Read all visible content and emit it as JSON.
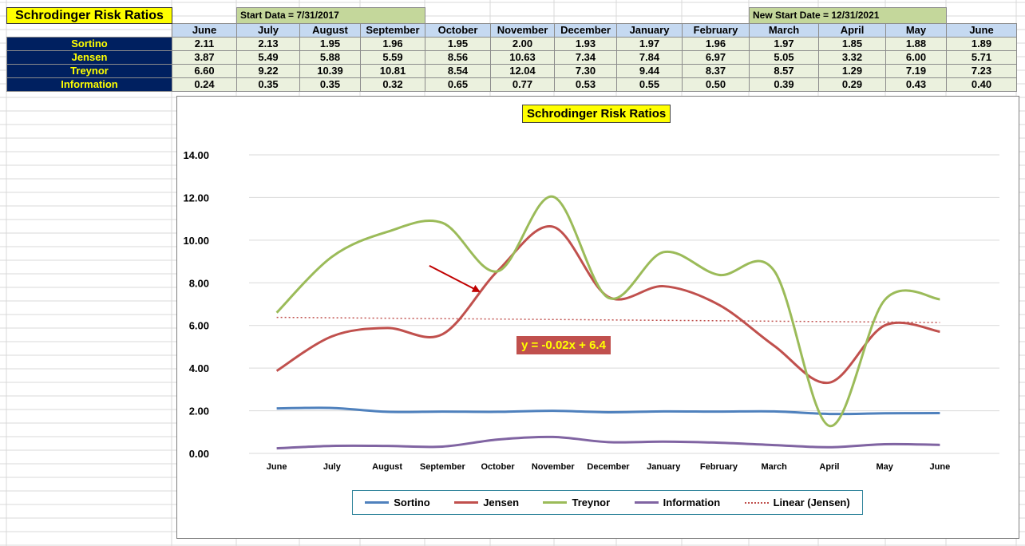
{
  "header": {
    "title": "Schrodinger Risk Ratios",
    "start_note": "Start Data = 7/31/2017",
    "new_start_note": "New Start Date = 12/31/2021"
  },
  "table": {
    "months": [
      "June",
      "July",
      "August",
      "September",
      "October",
      "November",
      "December",
      "January",
      "February",
      "March",
      "April",
      "May",
      "June"
    ],
    "rows": [
      {
        "label": "Sortino",
        "values": [
          "2.11",
          "2.13",
          "1.95",
          "1.96",
          "1.95",
          "2.00",
          "1.93",
          "1.97",
          "1.96",
          "1.97",
          "1.85",
          "1.88",
          "1.89"
        ]
      },
      {
        "label": "Jensen",
        "values": [
          "3.87",
          "5.49",
          "5.88",
          "5.59",
          "8.56",
          "10.63",
          "7.34",
          "7.84",
          "6.97",
          "5.05",
          "3.32",
          "6.00",
          "5.71"
        ]
      },
      {
        "label": "Treynor",
        "values": [
          "6.60",
          "9.22",
          "10.39",
          "10.81",
          "8.54",
          "12.04",
          "7.30",
          "9.44",
          "8.37",
          "8.57",
          "1.29",
          "7.19",
          "7.23"
        ]
      },
      {
        "label": "Information",
        "values": [
          "0.24",
          "0.35",
          "0.35",
          "0.32",
          "0.65",
          "0.77",
          "0.53",
          "0.55",
          "0.50",
          "0.39",
          "0.29",
          "0.43",
          "0.40"
        ]
      }
    ]
  },
  "chart_data": {
    "type": "line",
    "title": "Schrodinger Risk Ratios",
    "categories": [
      "June",
      "July",
      "August",
      "September",
      "October",
      "November",
      "December",
      "January",
      "February",
      "March",
      "April",
      "May",
      "June"
    ],
    "ylim": [
      0,
      14
    ],
    "yticks": [
      0,
      2,
      4,
      6,
      8,
      10,
      12,
      14
    ],
    "ytick_labels": [
      "0.00",
      "2.00",
      "4.00",
      "6.00",
      "8.00",
      "10.00",
      "12.00",
      "14.00"
    ],
    "grid": true,
    "smooth": true,
    "legend_position": "bottom",
    "series": [
      {
        "name": "Sortino",
        "color": "#4f81bd",
        "values": [
          2.11,
          2.13,
          1.95,
          1.96,
          1.95,
          2.0,
          1.93,
          1.97,
          1.96,
          1.97,
          1.85,
          1.88,
          1.89
        ]
      },
      {
        "name": "Jensen",
        "color": "#c0504d",
        "values": [
          3.87,
          5.49,
          5.88,
          5.59,
          8.56,
          10.63,
          7.34,
          7.84,
          6.97,
          5.05,
          3.32,
          6.0,
          5.71
        ]
      },
      {
        "name": "Treynor",
        "color": "#9bbb59",
        "values": [
          6.6,
          9.22,
          10.39,
          10.81,
          8.54,
          12.04,
          7.3,
          9.44,
          8.37,
          8.57,
          1.29,
          7.19,
          7.23
        ]
      },
      {
        "name": "Information",
        "color": "#8064a2",
        "values": [
          0.24,
          0.35,
          0.35,
          0.32,
          0.65,
          0.77,
          0.53,
          0.55,
          0.5,
          0.39,
          0.29,
          0.43,
          0.4
        ]
      }
    ],
    "trendline": {
      "name": "Linear (Jensen)",
      "color": "#c0504d",
      "equation": "y = -0.02x + 6.4",
      "slope": -0.02,
      "intercept": 6.4,
      "style": "dotted"
    },
    "annotation": {
      "type": "arrow",
      "color": "#c00000",
      "from": {
        "x": "July",
        "y": 8.8
      },
      "to": {
        "x": "August",
        "y": 7.6
      }
    }
  }
}
